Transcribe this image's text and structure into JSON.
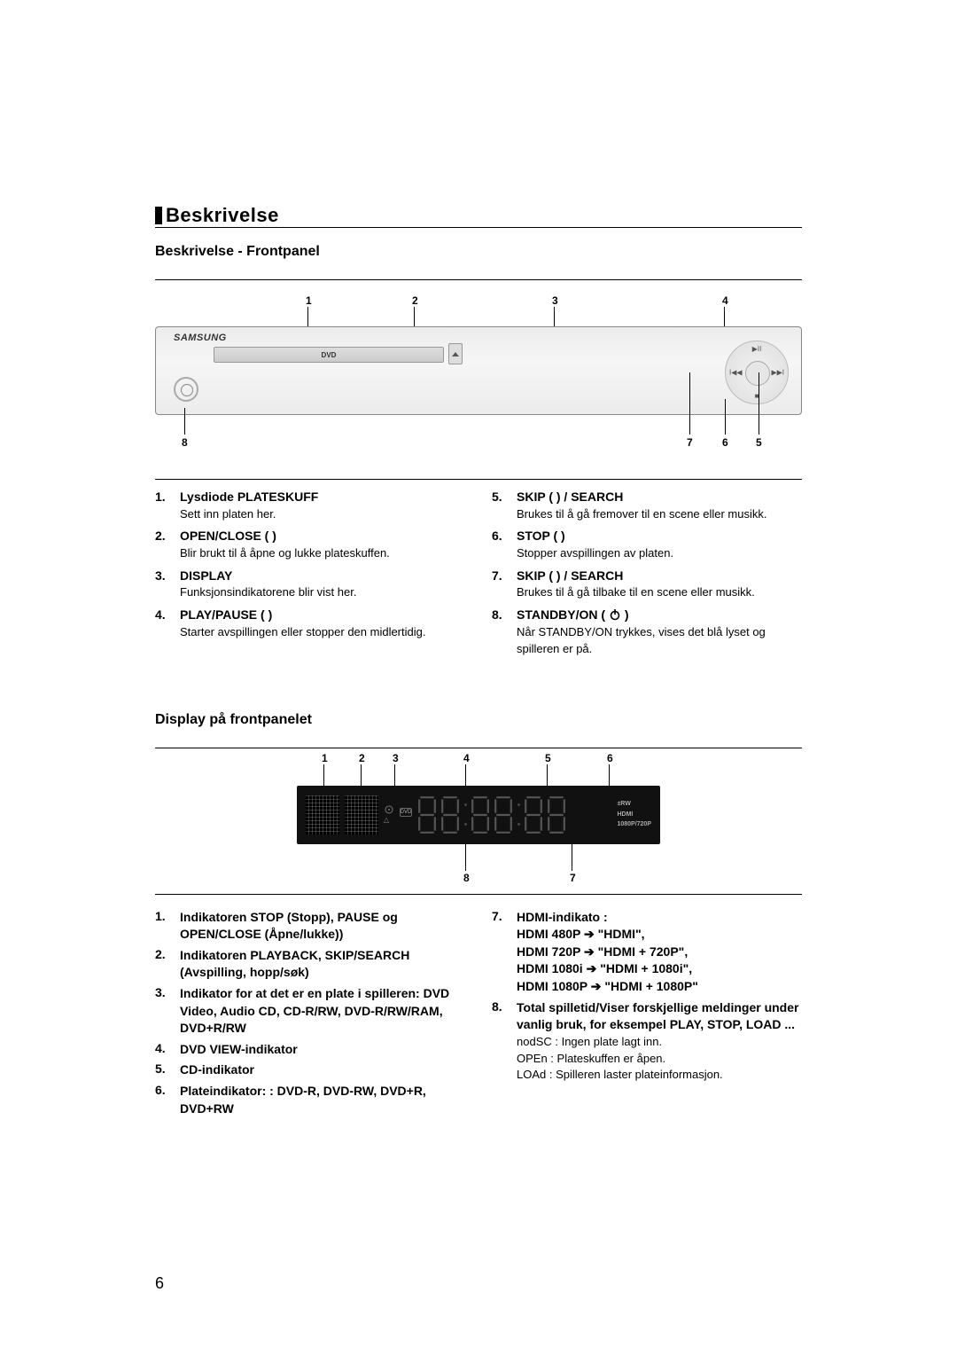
{
  "page_number": "6",
  "section_title": "Beskrivelse",
  "front_panel": {
    "heading": "Beskrivelse - Frontpanel",
    "callouts": [
      "1",
      "2",
      "3",
      "4",
      "5",
      "6",
      "7",
      "8"
    ],
    "brand_label": "SAMSUNG",
    "dvd_label": "DVD",
    "left_items": [
      {
        "num": "1.",
        "label": "Lysdiode PLATESKUFF",
        "desc": "Sett inn platen her."
      },
      {
        "num": "2.",
        "label": "OPEN/CLOSE (      )",
        "desc": "Blir brukt til å åpne og lukke plateskuffen."
      },
      {
        "num": "3.",
        "label": "DISPLAY",
        "desc": "Funksjonsindikatorene blir vist her."
      },
      {
        "num": "4.",
        "label": "PLAY/PAUSE (        )",
        "desc": "Starter avspillingen eller stopper den midlertidig."
      }
    ],
    "right_items": [
      {
        "num": "5.",
        "label": "SKIP (       ) / SEARCH",
        "desc": "Brukes til å gå fremover til en scene eller musikk."
      },
      {
        "num": "6.",
        "label": "STOP (       )",
        "desc": "Stopper avspillingen av platen."
      },
      {
        "num": "7.",
        "label": "SKIP (       ) / SEARCH",
        "desc": "Brukes til å gå tilbake til en scene eller musikk."
      },
      {
        "num": "8.",
        "label_pre": "STANDBY/ON ( ",
        "label_post": " )",
        "desc": "Når STANDBY/ON trykkes, vises det blå lyset og spilleren er på."
      }
    ]
  },
  "display_panel": {
    "heading": "Display på frontpanelet",
    "callouts": [
      "1",
      "2",
      "3",
      "4",
      "5",
      "6",
      "7",
      "8"
    ],
    "lcd_badge_dvd": "DVD",
    "lcd_badge_cd": "CD",
    "lcd_rw": "±RW",
    "lcd_hdmi": "HDMI",
    "lcd_res": "1080P/720P",
    "left_items": [
      {
        "num": "1.",
        "label": "Indikatoren STOP (Stopp), PAUSE og OPEN/CLOSE (Åpne/lukke))"
      },
      {
        "num": "2.",
        "label": "Indikatoren PLAYBACK, SKIP/SEARCH (Avspilling, hopp/søk)"
      },
      {
        "num": "3.",
        "label": "Indikator for at det er en plate i spilleren: DVD Video, Audio CD, CD-R/RW, DVD-R/RW/RAM, DVD+R/RW"
      },
      {
        "num": "4.",
        "label": "DVD VIEW-indikator"
      },
      {
        "num": "5.",
        "label": "CD-indikator"
      },
      {
        "num": "6.",
        "label": "Plateindikator: : DVD-R, DVD-RW, DVD+R, DVD+RW"
      }
    ],
    "right_items": [
      {
        "num": "7.",
        "label": "HDMI-indikato :",
        "lines": [
          "HDMI 480P ➔ \"HDMI\",",
          "HDMI 720P ➔ \"HDMI + 720P\",",
          "HDMI 1080i ➔ \"HDMI + 1080i\",",
          "HDMI 1080P ➔ \"HDMI + 1080P\""
        ]
      },
      {
        "num": "8.",
        "label": "Total spilletid/Viser forskjellige meldinger under vanlig bruk, for eksempel PLAY, STOP, LOAD ...",
        "descs": [
          "nodSC : Ingen plate lagt inn.",
          "OPEn : Plateskuffen er åpen.",
          "LOAd : Spilleren laster plateinformasjon."
        ]
      }
    ]
  }
}
